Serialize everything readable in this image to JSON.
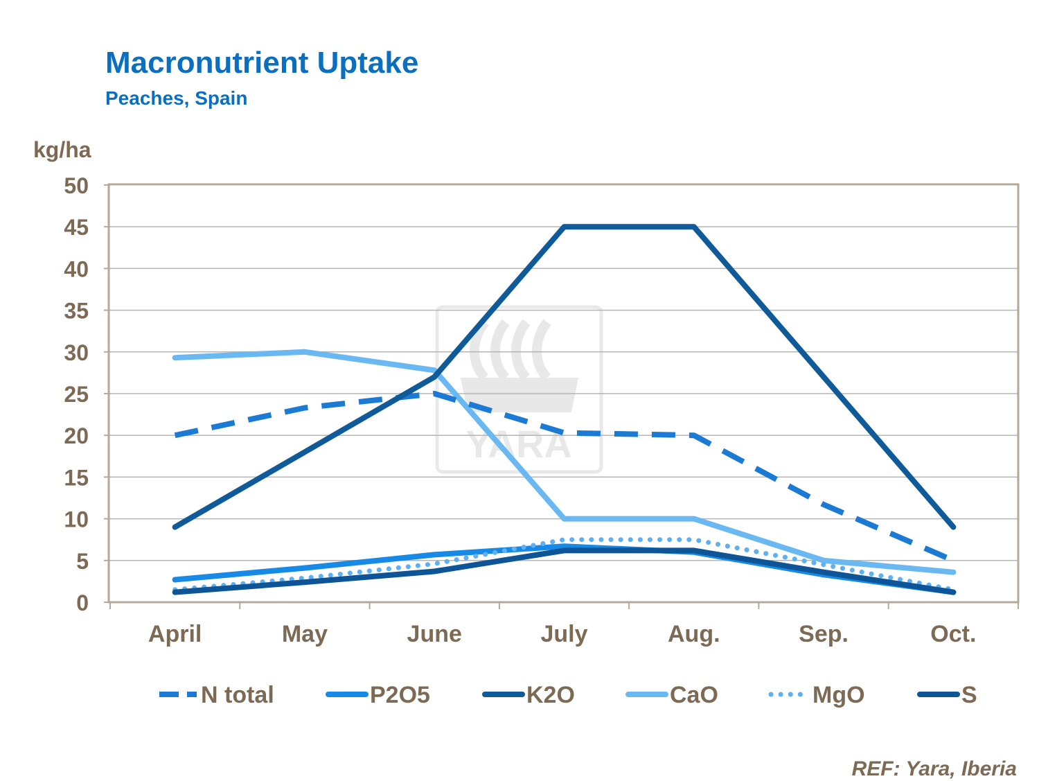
{
  "chart_data": {
    "type": "line",
    "title": "Macronutrient Uptake",
    "subtitle": "Peaches,  Spain",
    "ylabel": "kg/ha",
    "xlabel": "",
    "categories": [
      "April",
      "May",
      "June",
      "July",
      "Aug.",
      "Sep.",
      "Oct."
    ],
    "ylim": [
      0,
      50
    ],
    "yticks": [
      0,
      5,
      10,
      15,
      20,
      25,
      30,
      35,
      40,
      45,
      50
    ],
    "grid": true,
    "legend_position": "bottom",
    "series": [
      {
        "name": "N total",
        "values": [
          20,
          23.3,
          25,
          20.3,
          20,
          11.7,
          5
        ],
        "color": "#1a7ad4",
        "style": "dashed"
      },
      {
        "name": "P2O5",
        "values": [
          2.7,
          4.1,
          5.7,
          6.7,
          6.0,
          3.3,
          1.2
        ],
        "color": "#1789e6",
        "style": "solid"
      },
      {
        "name": "K2O",
        "values": [
          9,
          18,
          27,
          45,
          45,
          27,
          9
        ],
        "color": "#0f5a99",
        "style": "solid"
      },
      {
        "name": "CaO",
        "values": [
          29.3,
          30,
          27.8,
          10,
          10,
          5,
          3.6
        ],
        "color": "#6ab8f2",
        "style": "solid"
      },
      {
        "name": "MgO",
        "values": [
          1.5,
          2.9,
          4.6,
          7.5,
          7.5,
          4.5,
          1.5
        ],
        "color": "#5eb0f0",
        "style": "dotted"
      },
      {
        "name": "S",
        "values": [
          1.2,
          2.4,
          3.7,
          6.2,
          6.2,
          3.6,
          1.2
        ],
        "color": "#0d5596",
        "style": "solid"
      }
    ],
    "source": "REF: Yara, Iberia",
    "watermark": "YARA"
  }
}
